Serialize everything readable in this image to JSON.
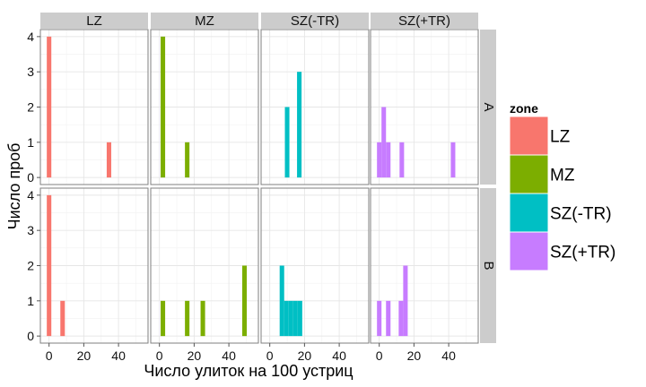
{
  "chart_data": {
    "type": "bar",
    "chart_kind": "faceted histogram",
    "xlabel": "Число улиток на 100 устриц",
    "ylabel": "Число проб",
    "columns": [
      "LZ",
      "MZ",
      "SZ(-TR)",
      "SZ(+TR)"
    ],
    "rows": [
      "A",
      "B"
    ],
    "xlim": [
      -5,
      57
    ],
    "ylim": [
      -0.2,
      4.2
    ],
    "x_ticks": [
      0,
      20,
      40
    ],
    "y_ticks": [
      0,
      1,
      2,
      3,
      4
    ],
    "bin_width": 2.6,
    "grid": true,
    "legend_position": "right",
    "legend": {
      "title": "zone",
      "entries": [
        {
          "label": "LZ",
          "color": "#F8766D"
        },
        {
          "label": "MZ",
          "color": "#7CAE00"
        },
        {
          "label": "SZ(-TR)",
          "color": "#00BFC4"
        },
        {
          "label": "SZ(+TR)",
          "color": "#C77CFF"
        }
      ]
    },
    "panels": [
      {
        "row": "A",
        "col": "LZ",
        "color": "#F8766D",
        "bars": [
          {
            "x": 0,
            "count": 4
          },
          {
            "x": 34.5,
            "count": 1
          }
        ]
      },
      {
        "row": "A",
        "col": "MZ",
        "color": "#7CAE00",
        "bars": [
          {
            "x": 2,
            "count": 4
          },
          {
            "x": 16,
            "count": 1
          }
        ]
      },
      {
        "row": "A",
        "col": "SZ(-TR)",
        "color": "#00BFC4",
        "bars": [
          {
            "x": 10,
            "count": 2
          },
          {
            "x": 17,
            "count": 3
          }
        ]
      },
      {
        "row": "A",
        "col": "SZ(+TR)",
        "color": "#C77CFF",
        "bars": [
          {
            "x": 0,
            "count": 1
          },
          {
            "x": 2.6,
            "count": 2
          },
          {
            "x": 5.2,
            "count": 1
          },
          {
            "x": 13,
            "count": 1
          },
          {
            "x": 42.5,
            "count": 1
          }
        ]
      },
      {
        "row": "B",
        "col": "LZ",
        "color": "#F8766D",
        "bars": [
          {
            "x": 0,
            "count": 4
          },
          {
            "x": 7.8,
            "count": 1
          }
        ]
      },
      {
        "row": "B",
        "col": "MZ",
        "color": "#7CAE00",
        "bars": [
          {
            "x": 2,
            "count": 1
          },
          {
            "x": 16,
            "count": 1
          },
          {
            "x": 25,
            "count": 1
          },
          {
            "x": 49,
            "count": 2
          }
        ]
      },
      {
        "row": "B",
        "col": "SZ(-TR)",
        "color": "#00BFC4",
        "bars": [
          {
            "x": 7,
            "count": 2
          },
          {
            "x": 9.6,
            "count": 1
          },
          {
            "x": 12.2,
            "count": 1
          },
          {
            "x": 14.8,
            "count": 1
          },
          {
            "x": 17.4,
            "count": 1
          }
        ]
      },
      {
        "row": "B",
        "col": "SZ(+TR)",
        "color": "#C77CFF",
        "bars": [
          {
            "x": 0,
            "count": 1
          },
          {
            "x": 5.2,
            "count": 1
          },
          {
            "x": 12.5,
            "count": 1
          },
          {
            "x": 15.1,
            "count": 2
          }
        ]
      }
    ]
  }
}
